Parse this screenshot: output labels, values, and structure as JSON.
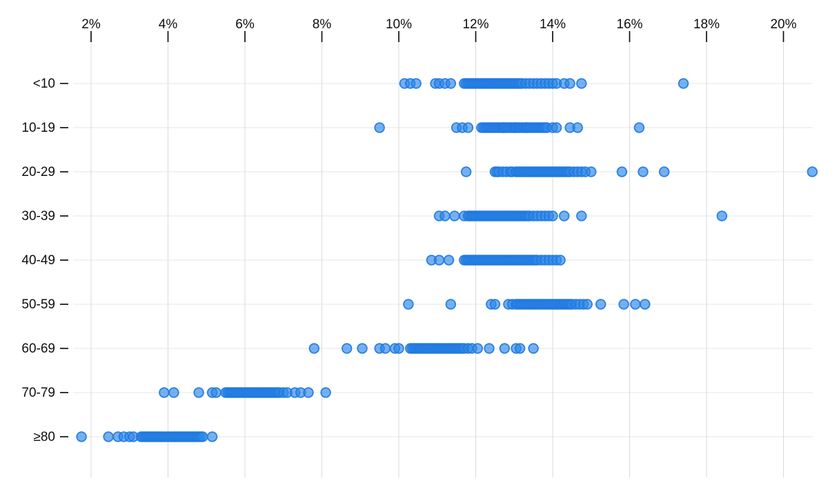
{
  "chart_data": {
    "type": "scatter",
    "variant": "horizontal-strip-plot",
    "title": "",
    "xlabel": "",
    "ylabel": "",
    "legend": "none",
    "grid": true,
    "x_axis": {
      "position": "top",
      "format": "percent",
      "tick_values": [
        2,
        4,
        6,
        8,
        10,
        12,
        14,
        16,
        18,
        20
      ],
      "tick_labels": [
        "2%",
        "4%",
        "6%",
        "8%",
        "10%",
        "12%",
        "14%",
        "16%",
        "18%",
        "20%"
      ],
      "range": [
        1.5,
        21.5
      ]
    },
    "categories": [
      "<10",
      "10-19",
      "20-29",
      "30-39",
      "40-49",
      "50-59",
      "60-69",
      "70-79",
      "≥80"
    ],
    "series": [
      {
        "category": "<10",
        "values": [
          10.15,
          10.3,
          10.45,
          10.95,
          11.05,
          11.2,
          11.35,
          11.7,
          11.75,
          11.8,
          11.85,
          11.9,
          11.95,
          12.0,
          12.05,
          12.1,
          12.15,
          12.2,
          12.25,
          12.3,
          12.35,
          12.4,
          12.45,
          12.5,
          12.55,
          12.6,
          12.65,
          12.7,
          12.75,
          12.8,
          12.85,
          12.9,
          12.95,
          13.0,
          13.05,
          13.1,
          13.15,
          13.2,
          13.3,
          13.4,
          13.5,
          13.6,
          13.7,
          13.8,
          13.9,
          14.0,
          14.1,
          14.3,
          14.45,
          14.75,
          17.4
        ]
      },
      {
        "category": "10-19",
        "values": [
          9.5,
          11.5,
          11.65,
          11.8,
          12.15,
          12.2,
          12.25,
          12.3,
          12.35,
          12.4,
          12.45,
          12.5,
          12.55,
          12.6,
          12.65,
          12.7,
          12.72,
          12.75,
          12.8,
          12.85,
          12.9,
          12.95,
          13.0,
          13.02,
          13.05,
          13.1,
          13.15,
          13.2,
          13.25,
          13.3,
          13.32,
          13.35,
          13.4,
          13.45,
          13.5,
          13.55,
          13.6,
          13.65,
          13.7,
          13.75,
          13.8,
          13.85,
          14.0,
          14.1,
          14.45,
          14.65,
          16.25
        ]
      },
      {
        "category": "20-29",
        "values": [
          11.75,
          12.5,
          12.55,
          12.6,
          12.7,
          12.8,
          12.9,
          12.95,
          13.05,
          13.1,
          13.15,
          13.2,
          13.25,
          13.3,
          13.35,
          13.4,
          13.45,
          13.5,
          13.55,
          13.6,
          13.65,
          13.7,
          13.75,
          13.8,
          13.85,
          13.9,
          13.95,
          14.0,
          14.05,
          14.1,
          14.15,
          14.2,
          14.25,
          14.3,
          14.35,
          14.4,
          14.45,
          14.55,
          14.65,
          14.75,
          14.85,
          15.0,
          15.8,
          16.35,
          16.9,
          20.75
        ]
      },
      {
        "category": "30-39",
        "values": [
          11.05,
          11.2,
          11.45,
          11.7,
          11.8,
          11.85,
          11.9,
          11.95,
          12.0,
          12.05,
          12.1,
          12.15,
          12.2,
          12.25,
          12.3,
          12.35,
          12.4,
          12.45,
          12.5,
          12.55,
          12.6,
          12.65,
          12.7,
          12.75,
          12.8,
          12.85,
          12.9,
          12.95,
          13.0,
          13.05,
          13.1,
          13.15,
          13.2,
          13.25,
          13.3,
          13.35,
          13.4,
          13.5,
          13.6,
          13.7,
          13.8,
          13.9,
          14.0,
          14.3,
          14.75,
          18.4
        ]
      },
      {
        "category": "40-49",
        "values": [
          10.85,
          11.05,
          11.3,
          11.7,
          11.75,
          11.8,
          11.85,
          11.9,
          11.95,
          12.0,
          12.05,
          12.1,
          12.15,
          12.2,
          12.25,
          12.3,
          12.35,
          12.4,
          12.45,
          12.5,
          12.55,
          12.6,
          12.65,
          12.7,
          12.75,
          12.8,
          12.85,
          12.9,
          12.95,
          13.0,
          13.05,
          13.1,
          13.15,
          13.2,
          13.25,
          13.3,
          13.35,
          13.4,
          13.45,
          13.5,
          13.55,
          13.6,
          13.7,
          13.8,
          13.9,
          14.0,
          14.1,
          14.2
        ]
      },
      {
        "category": "50-59",
        "values": [
          10.25,
          11.35,
          12.4,
          12.5,
          12.85,
          12.95,
          13.05,
          13.1,
          13.15,
          13.2,
          13.25,
          13.3,
          13.35,
          13.4,
          13.45,
          13.5,
          13.55,
          13.6,
          13.65,
          13.7,
          13.75,
          13.8,
          13.85,
          13.9,
          13.95,
          14.0,
          14.05,
          14.1,
          14.15,
          14.2,
          14.25,
          14.3,
          14.35,
          14.4,
          14.45,
          14.5,
          14.6,
          14.7,
          14.8,
          14.9,
          15.25,
          15.85,
          16.15,
          16.4
        ]
      },
      {
        "category": "60-69",
        "values": [
          7.8,
          8.65,
          9.05,
          9.5,
          9.65,
          9.9,
          10.0,
          10.3,
          10.35,
          10.4,
          10.45,
          10.5,
          10.55,
          10.6,
          10.65,
          10.7,
          10.75,
          10.8,
          10.85,
          10.9,
          10.95,
          11.0,
          11.05,
          11.1,
          11.15,
          11.2,
          11.25,
          11.3,
          11.35,
          11.4,
          11.45,
          11.5,
          11.55,
          11.6,
          11.65,
          11.7,
          11.8,
          11.9,
          12.05,
          12.35,
          12.75,
          13.05,
          13.15,
          13.5
        ]
      },
      {
        "category": "70-79",
        "values": [
          3.9,
          4.15,
          4.8,
          5.15,
          5.25,
          5.5,
          5.55,
          5.6,
          5.65,
          5.7,
          5.75,
          5.8,
          5.85,
          5.9,
          5.95,
          6.0,
          6.05,
          6.1,
          6.15,
          6.2,
          6.25,
          6.3,
          6.35,
          6.4,
          6.45,
          6.5,
          6.55,
          6.6,
          6.65,
          6.7,
          6.75,
          6.8,
          6.85,
          6.9,
          7.0,
          7.1,
          7.3,
          7.45,
          7.65,
          8.1
        ]
      },
      {
        "category": "≥80",
        "values": [
          1.75,
          2.45,
          2.7,
          2.85,
          3.0,
          3.1,
          3.3,
          3.35,
          3.4,
          3.45,
          3.5,
          3.55,
          3.6,
          3.65,
          3.7,
          3.75,
          3.8,
          3.85,
          3.9,
          3.95,
          4.0,
          4.05,
          4.1,
          4.15,
          4.2,
          4.25,
          4.3,
          4.35,
          4.4,
          4.45,
          4.5,
          4.55,
          4.6,
          4.65,
          4.7,
          4.75,
          4.8,
          4.85,
          4.9,
          5.15
        ]
      }
    ],
    "style": {
      "background": "#ffffff",
      "dot_fill": "#2d87e8",
      "dot_fill_opacity": 0.65,
      "dot_stroke": "#2079e0",
      "vertical_grid_color": "#d9d9d9",
      "horizontal_grid_color": "#e4e4e4",
      "tick_color": "#111111",
      "text_color": "#0e0e0e"
    }
  }
}
